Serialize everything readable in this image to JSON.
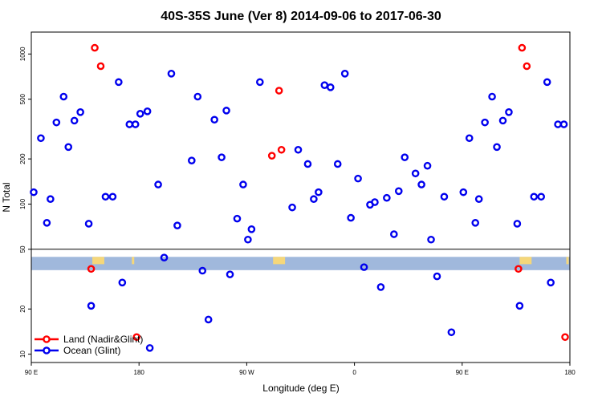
{
  "chart_data": {
    "type": "scatter",
    "title": "40S-35S June (Ver 8)   2014-09-06 to 2017-06-30",
    "xlabel": "Longitude (deg E)",
    "ylabel": "N Total",
    "y_scale": "log",
    "ylim": [
      8.8,
      1400
    ],
    "x_ticks": [
      {
        "value": 90,
        "label": "90 E"
      },
      {
        "value": 180,
        "label": "180"
      },
      {
        "value": 270,
        "label": "90 W"
      },
      {
        "value": 360,
        "label": "0"
      },
      {
        "value": 450,
        "label": "90 E"
      },
      {
        "value": 540,
        "label": "180"
      }
    ],
    "y_ticks": [
      {
        "value": 10,
        "label": "10"
      },
      {
        "value": 20,
        "label": "20"
      },
      {
        "value": 50,
        "label": "50"
      },
      {
        "value": 100,
        "label": "100"
      },
      {
        "value": 200,
        "label": "200"
      },
      {
        "value": 500,
        "label": "500"
      },
      {
        "value": 1000,
        "label": "1000"
      }
    ],
    "land_band_color": "#a0b8dc",
    "land_patch_color": "#f5d77a",
    "legend": {
      "position": "bottom-left"
    },
    "series": [
      {
        "name": "Land (Nadir&Glint)",
        "color": "#ff0000",
        "points": [
          [
            143,
            1100
          ],
          [
            148,
            830
          ],
          [
            140,
            37
          ],
          [
            178,
            13
          ],
          [
            297,
            570
          ],
          [
            291,
            210
          ],
          [
            299,
            230
          ],
          [
            500,
            1100
          ],
          [
            504,
            830
          ],
          [
            497,
            37
          ],
          [
            536,
            13
          ]
        ]
      },
      {
        "name": "Ocean (Glint)",
        "color": "#0000ee",
        "points": [
          [
            92,
            120
          ],
          [
            98,
            275
          ],
          [
            103,
            75
          ],
          [
            106,
            108
          ],
          [
            111,
            350
          ],
          [
            117,
            520
          ],
          [
            121,
            240
          ],
          [
            126,
            360
          ],
          [
            131,
            410
          ],
          [
            138,
            74
          ],
          [
            140,
            21
          ],
          [
            152,
            112
          ],
          [
            158,
            112
          ],
          [
            163,
            650
          ],
          [
            166,
            30
          ],
          [
            172,
            340
          ],
          [
            177,
            340
          ],
          [
            181,
            400
          ],
          [
            187,
            415
          ],
          [
            189,
            11
          ],
          [
            196,
            135
          ],
          [
            201,
            44
          ],
          [
            207,
            740
          ],
          [
            212,
            72
          ],
          [
            224,
            195
          ],
          [
            229,
            520
          ],
          [
            233,
            36
          ],
          [
            238,
            17
          ],
          [
            243,
            365
          ],
          [
            249,
            205
          ],
          [
            253,
            420
          ],
          [
            256,
            34
          ],
          [
            262,
            80
          ],
          [
            267,
            135
          ],
          [
            271,
            58
          ],
          [
            274,
            68
          ],
          [
            281,
            650
          ],
          [
            308,
            95
          ],
          [
            313,
            230
          ],
          [
            321,
            185
          ],
          [
            326,
            108
          ],
          [
            330,
            120
          ],
          [
            335,
            620
          ],
          [
            340,
            600
          ],
          [
            346,
            185
          ],
          [
            352,
            740
          ],
          [
            357,
            81
          ],
          [
            363,
            148
          ],
          [
            368,
            38
          ],
          [
            373,
            99
          ],
          [
            377,
            103
          ],
          [
            382,
            28
          ],
          [
            387,
            110
          ],
          [
            393,
            63
          ],
          [
            397,
            122
          ],
          [
            402,
            205
          ],
          [
            411,
            160
          ],
          [
            416,
            135
          ],
          [
            421,
            180
          ],
          [
            424,
            58
          ],
          [
            429,
            33
          ],
          [
            435,
            112
          ],
          [
            441,
            14
          ],
          [
            451,
            120
          ],
          [
            456,
            275
          ],
          [
            461,
            75
          ],
          [
            464,
            108
          ],
          [
            469,
            350
          ],
          [
            475,
            520
          ],
          [
            479,
            240
          ],
          [
            484,
            360
          ],
          [
            489,
            410
          ],
          [
            496,
            74
          ],
          [
            498,
            21
          ],
          [
            510,
            112
          ],
          [
            516,
            112
          ],
          [
            521,
            650
          ],
          [
            524,
            30
          ],
          [
            530,
            340
          ],
          [
            535,
            340
          ]
        ]
      }
    ]
  }
}
